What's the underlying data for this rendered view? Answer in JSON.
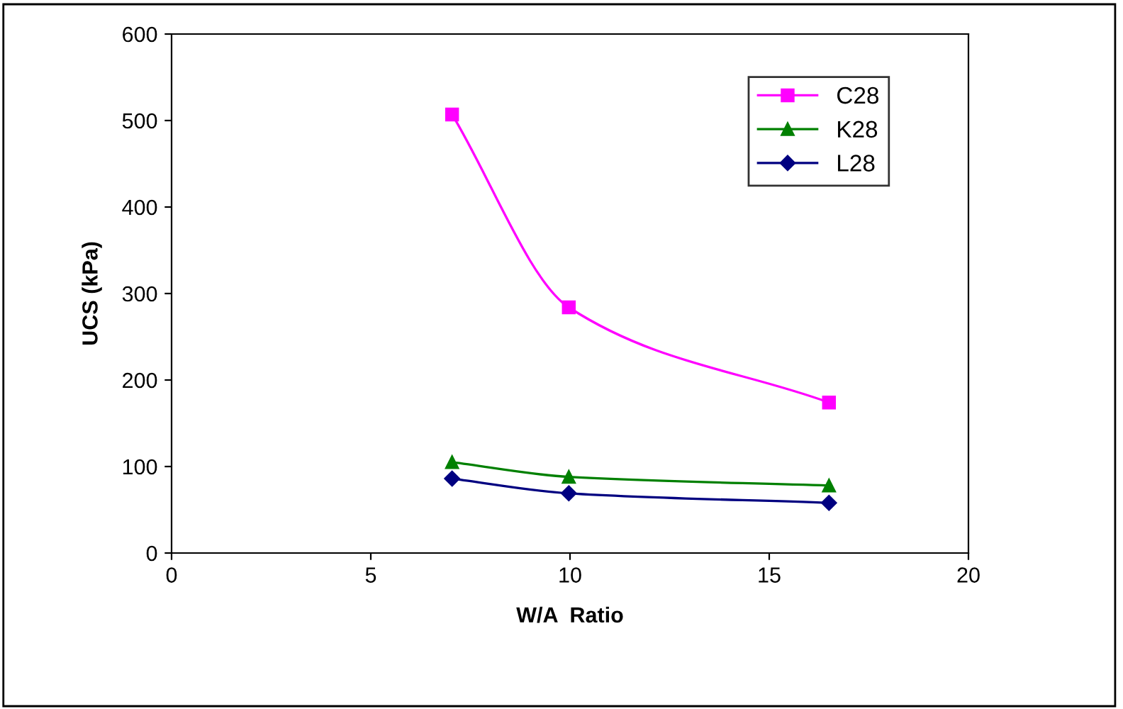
{
  "chart_data": {
    "type": "line",
    "xlabel": "W/A  Ratio",
    "ylabel": "UCS (kPa)",
    "x": [
      7.04,
      9.97,
      16.5
    ],
    "series": [
      {
        "name": "C28",
        "color": "#ff00ff",
        "values": [
          507,
          284,
          174
        ],
        "marker": "square"
      },
      {
        "name": "K28",
        "color": "#008000",
        "values": [
          105,
          88,
          78
        ],
        "marker": "triangle"
      },
      {
        "name": "L28",
        "color": "#000080",
        "values": [
          86,
          69,
          58
        ],
        "marker": "diamond"
      }
    ],
    "xlim": [
      0,
      20
    ],
    "xticks": [
      0,
      5,
      10,
      15,
      20
    ],
    "ylim": [
      0,
      600
    ],
    "yticks": [
      0,
      100,
      200,
      300,
      400,
      500,
      600
    ],
    "grid": false,
    "legend": "top right"
  }
}
